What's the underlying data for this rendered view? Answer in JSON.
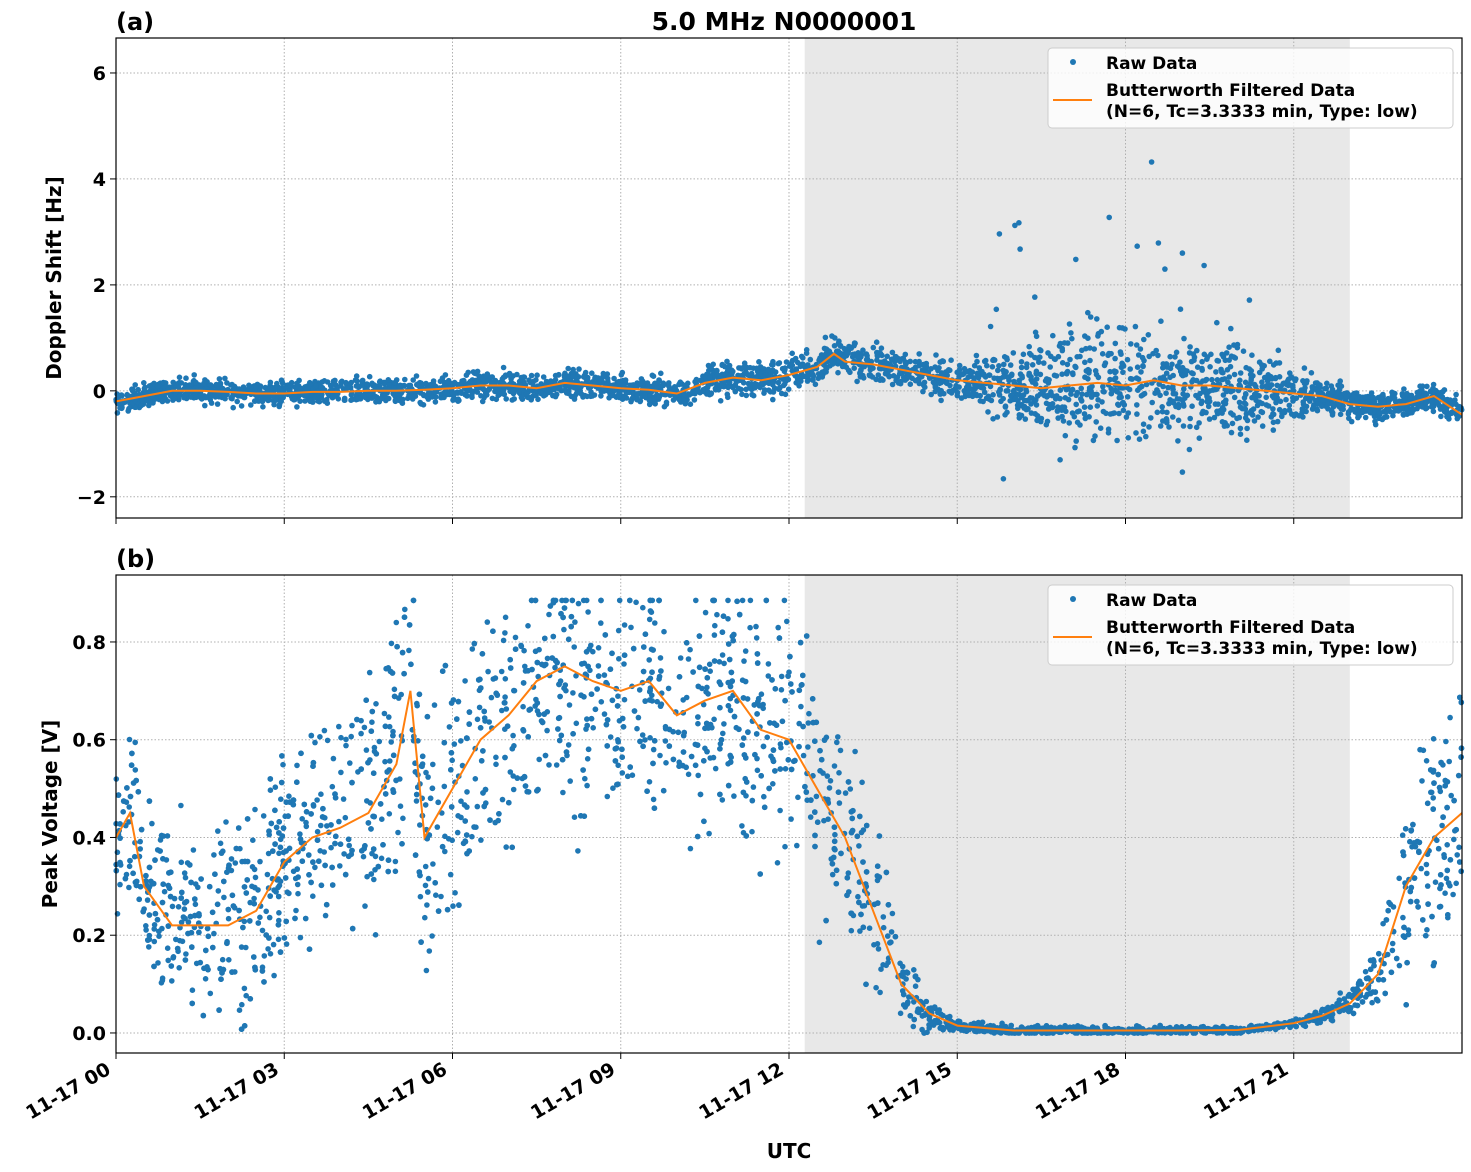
{
  "chart_data": {
    "type": "scatter",
    "title": "5.0 MHz N0000001",
    "xlabel": "UTC",
    "xlim_hours": [
      0,
      24
    ],
    "xticks": [
      0,
      3,
      6,
      9,
      12,
      15,
      18,
      21
    ],
    "xtick_labels": [
      "11-17 00",
      "11-17 03",
      "11-17 06",
      "11-17 09",
      "11-17 12",
      "11-17 15",
      "11-17 18",
      "11-17 21"
    ],
    "shaded_interval_hours": [
      12.28,
      22.0
    ],
    "colors": {
      "raw": "#1f77b4",
      "filtered": "#ff7f0e",
      "shade": "#e8e8e8"
    },
    "legend": {
      "placement": "top-right",
      "raw_label": "Raw Data",
      "filtered_label_1": "Butterworth Filtered Data",
      "filtered_label_2": "(N=6, Tc=3.3333 min, Type: low)"
    },
    "panels": [
      {
        "tag": "(a)",
        "ylabel": "Doppler Shift [Hz]",
        "ylim": [
          -2.4,
          6.66
        ],
        "yticks": [
          -2,
          0,
          2,
          4,
          6
        ],
        "ytick_labels": [
          "−2",
          "0",
          "2",
          "4",
          "6"
        ],
        "filtered": {
          "x": [
            0,
            0.5,
            1,
            1.5,
            2,
            2.5,
            3,
            3.5,
            4,
            4.5,
            5,
            5.5,
            6,
            6.5,
            7,
            7.5,
            8,
            8.5,
            9,
            9.5,
            10,
            10.5,
            11,
            11.5,
            12,
            12.5,
            12.8,
            13,
            13.5,
            14,
            14.5,
            15,
            15.5,
            16,
            16.5,
            17,
            17.5,
            18,
            18.5,
            19,
            19.5,
            20,
            20.5,
            21,
            21.5,
            22,
            22.5,
            23,
            23.5,
            24
          ],
          "y": [
            -0.2,
            -0.1,
            0,
            0,
            -0.02,
            -0.05,
            -0.05,
            -0.02,
            -0.02,
            0,
            0,
            0.02,
            0.05,
            0.1,
            0.1,
            0.05,
            0.15,
            0.1,
            0.05,
            0.02,
            -0.05,
            0.15,
            0.25,
            0.2,
            0.3,
            0.45,
            0.7,
            0.55,
            0.5,
            0.4,
            0.3,
            0.2,
            0.15,
            0.1,
            0.05,
            0.1,
            0.15,
            0.1,
            0.2,
            0.1,
            0.1,
            0.05,
            0.0,
            -0.05,
            -0.1,
            -0.25,
            -0.3,
            -0.25,
            -0.1,
            -0.45
          ]
        },
        "raw_spread": {
          "x": [
            0,
            10,
            12,
            14,
            15,
            16,
            17,
            20,
            21,
            22,
            24
          ],
          "halfwidth": [
            0.25,
            0.3,
            0.4,
            0.35,
            0.4,
            0.8,
            1.2,
            1.1,
            0.5,
            0.3,
            0.3
          ]
        }
      },
      {
        "tag": "(b)",
        "ylabel": "Peak Voltage [V]",
        "ylim": [
          -0.041,
          0.937
        ],
        "yticks": [
          0,
          0.2,
          0.4,
          0.6,
          0.8
        ],
        "ytick_labels": [
          "0.0",
          "0.2",
          "0.4",
          "0.6",
          "0.8"
        ],
        "filtered": {
          "x": [
            0,
            0.25,
            0.5,
            1,
            1.5,
            2,
            2.5,
            3,
            3.5,
            4,
            4.5,
            5,
            5.25,
            5.5,
            6,
            6.5,
            7,
            7.5,
            8,
            8.5,
            9,
            9.5,
            10,
            10.5,
            11,
            11.5,
            12,
            12.5,
            13,
            13.5,
            14,
            14.5,
            15,
            16,
            17,
            18,
            19,
            20,
            21,
            21.5,
            22,
            22.5,
            23,
            23.5,
            24
          ],
          "y": [
            0.4,
            0.45,
            0.3,
            0.22,
            0.22,
            0.22,
            0.25,
            0.35,
            0.4,
            0.42,
            0.45,
            0.55,
            0.7,
            0.4,
            0.5,
            0.6,
            0.65,
            0.72,
            0.75,
            0.72,
            0.7,
            0.72,
            0.65,
            0.68,
            0.7,
            0.62,
            0.6,
            0.5,
            0.4,
            0.25,
            0.1,
            0.04,
            0.015,
            0.005,
            0.005,
            0.005,
            0.005,
            0.006,
            0.02,
            0.035,
            0.06,
            0.12,
            0.3,
            0.4,
            0.45
          ]
        },
        "raw_spread": {
          "x": [
            0,
            3,
            5,
            6,
            9,
            12,
            13,
            13.5,
            14,
            14.5,
            15,
            21,
            22,
            22.5,
            23,
            24
          ],
          "halfwidth": [
            0.2,
            0.25,
            0.3,
            0.3,
            0.3,
            0.3,
            0.25,
            0.2,
            0.08,
            0.04,
            0.015,
            0.01,
            0.03,
            0.08,
            0.25,
            0.3
          ]
        }
      }
    ]
  }
}
